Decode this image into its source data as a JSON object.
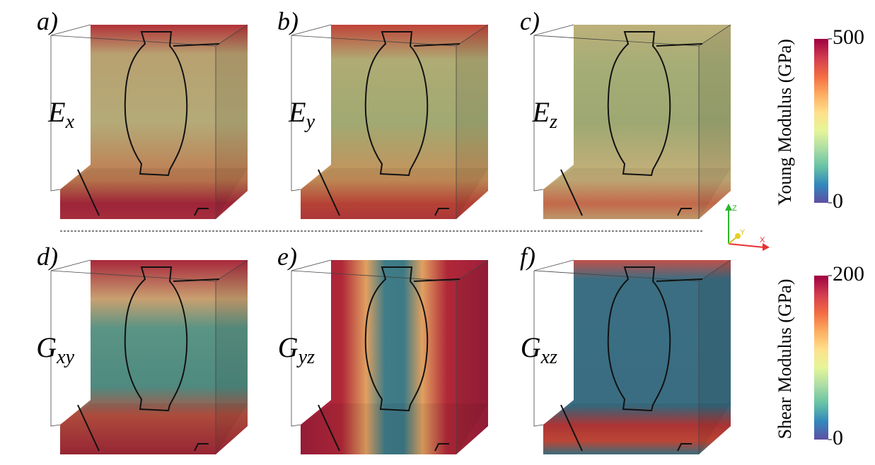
{
  "panels": [
    {
      "label": "a)",
      "symbol": {
        "letter": "E",
        "subscript": "x"
      }
    },
    {
      "label": "b)",
      "symbol": {
        "letter": "E",
        "subscript": "y"
      }
    },
    {
      "label": "c)",
      "symbol": {
        "letter": "E",
        "subscript": "z"
      }
    },
    {
      "label": "d)",
      "symbol": {
        "letter": "G",
        "subscript": "xy"
      }
    },
    {
      "label": "e)",
      "symbol": {
        "letter": "G",
        "subscript": "yz"
      }
    },
    {
      "label": "f)",
      "symbol": {
        "letter": "G",
        "subscript": "xz"
      }
    }
  ],
  "colorbars": [
    {
      "title": "Young Modulus (GPa)",
      "lim": [
        0,
        500
      ],
      "ticks": [
        0,
        500
      ]
    },
    {
      "title": "Shear Modulus (GPa)",
      "lim": [
        0,
        200
      ],
      "ticks": [
        0,
        200
      ]
    }
  ],
  "axes_triad": {
    "z": "Z",
    "y": "Y",
    "x": "X"
  }
}
